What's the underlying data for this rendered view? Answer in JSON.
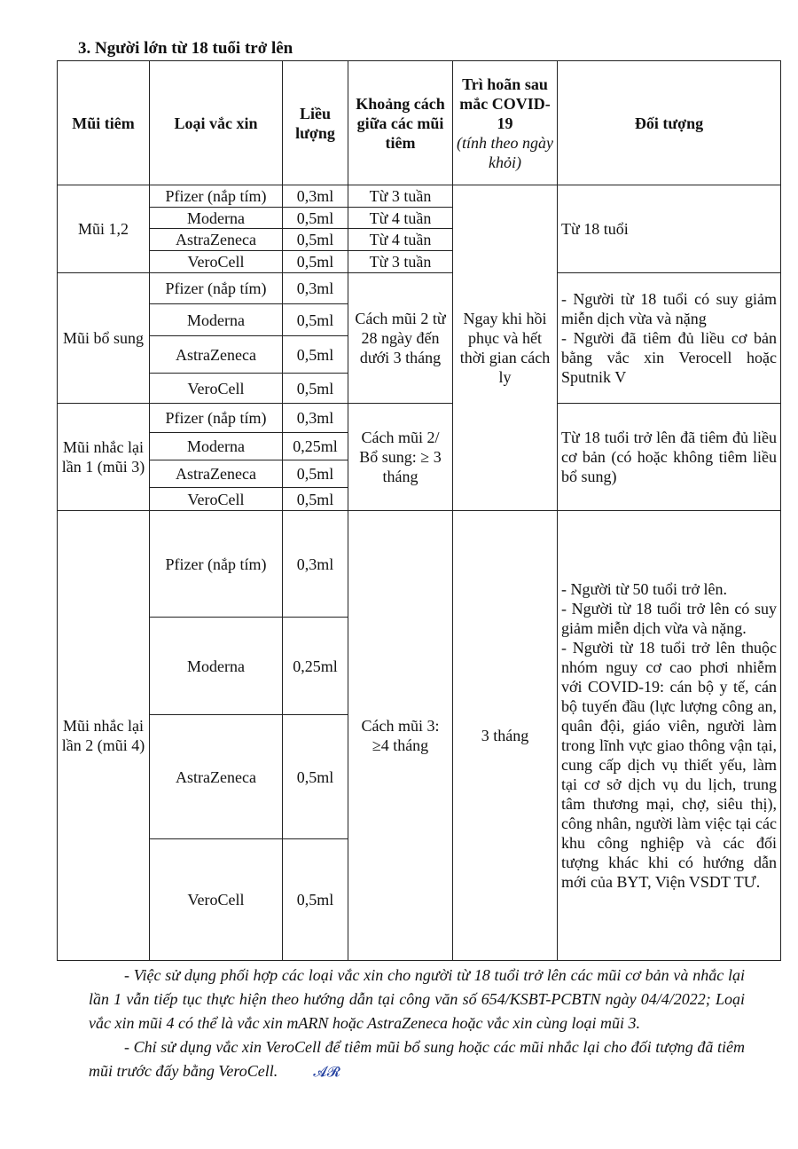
{
  "section_title": "3. Người lớn từ 18 tuổi trở lên",
  "table": {
    "headers": {
      "dose": "Mũi tiêm",
      "vaccine": "Loại vắc xin",
      "amount": "Liều lượng",
      "interval": "Khoảng cách giữa các mũi tiêm",
      "delay": "Trì hoãn sau mắc COVID-19",
      "delay_note": "(tính theo ngày khỏi)",
      "target": "Đối tượng"
    },
    "groups": [
      {
        "dose": "Mũi 1,2",
        "rows": [
          {
            "vaccine": "Pfizer (nắp tím)",
            "amount": "0,3ml",
            "interval": "Từ 3 tuần"
          },
          {
            "vaccine": "Moderna",
            "amount": "0,5ml",
            "interval": "Từ 4 tuần"
          },
          {
            "vaccine": "AstraZeneca",
            "amount": "0,5ml",
            "interval": "Từ 4 tuần"
          },
          {
            "vaccine": "VeroCell",
            "amount": "0,5ml",
            "interval": "Từ 3 tuần"
          }
        ],
        "target": [
          "Từ 18 tuổi"
        ]
      },
      {
        "dose": "Mũi bổ sung",
        "rows": [
          {
            "vaccine": "Pfizer (nắp tím)",
            "amount": "0,3ml"
          },
          {
            "vaccine": "Moderna",
            "amount": "0,5ml"
          },
          {
            "vaccine": "AstraZeneca",
            "amount": "0,5ml"
          },
          {
            "vaccine": "VeroCell",
            "amount": "0,5ml"
          }
        ],
        "interval": "Cách mũi 2 từ 28 ngày đến dưới 3 tháng",
        "target": [
          "- Người từ 18 tuổi có suy giảm miễn dịch vừa và nặng",
          "- Người đã tiêm đủ liều cơ bản bằng vắc xin Verocell hoặc Sputnik V"
        ]
      },
      {
        "dose": "Mũi nhắc lại lần 1 (mũi 3)",
        "rows": [
          {
            "vaccine": "Pfizer (nắp tím)",
            "amount": "0,3ml"
          },
          {
            "vaccine": "Moderna",
            "amount": "0,25ml"
          },
          {
            "vaccine": "AstraZeneca",
            "amount": "0,5ml"
          },
          {
            "vaccine": "VeroCell",
            "amount": "0,5ml"
          }
        ],
        "interval": "Cách mũi 2/ Bổ sung: ≥ 3 tháng",
        "target": [
          "Từ 18 tuổi trở lên đã tiêm đủ liều cơ bản (có hoặc không tiêm liều bổ sung)"
        ]
      },
      {
        "dose": "Mũi nhắc lại lần 2 (mũi 4)",
        "rows": [
          {
            "vaccine": "Pfizer (nắp tím)",
            "amount": "0,3ml"
          },
          {
            "vaccine": "Moderna",
            "amount": "0,25ml"
          },
          {
            "vaccine": "AstraZeneca",
            "amount": "0,5ml"
          },
          {
            "vaccine": "VeroCell",
            "amount": "0,5ml"
          }
        ],
        "interval": "Cách mũi 3: ≥4 tháng",
        "delay": "3 tháng",
        "target": [
          "- Người từ 50 tuổi trở lên.",
          "- Người từ 18 tuổi trở lên có suy giảm miễn dịch vừa và nặng.",
          "- Người từ 18 tuổi trở lên thuộc nhóm nguy cơ cao phơi nhiễm với COVID-19: cán bộ y tế, cán bộ tuyến đầu (lực lượng công an, quân đội, giáo viên, người làm trong lĩnh vực giao thông vận tại, cung cấp dịch vụ thiết yếu, làm tại cơ sở dịch vụ du lịch, trung tâm thương mại, chợ, siêu thị), công nhân, người làm việc tại các khu công nghiệp và các đối tượng khác khi có hướng dẫn mới của BYT, Viện VSDT TƯ."
        ]
      }
    ],
    "delay_groups_1_3": "Ngay khi hồi phục và hết thời gian cách ly"
  },
  "notes": [
    "- Việc sử dụng phối hợp các loại vắc xin cho người từ 18 tuổi trở lên các mũi cơ bản và nhắc lại lần 1 vẫn tiếp tục thực hiện theo hướng dẫn tại công văn số 654/KSBT-PCBTN ngày 04/4/2022; Loại vắc xin mũi 4 có thể là vắc xin mARN hoặc AstraZeneca hoặc vắc xin cùng loại mũi 3.",
    "- Chỉ sử dụng vắc xin VeroCell để tiêm mũi bổ sung hoặc các mũi nhắc lại cho đối tượng đã tiêm mũi trước đấy bằng VeroCell."
  ],
  "signature_mark": "initials",
  "ink_color": "#2340a0"
}
